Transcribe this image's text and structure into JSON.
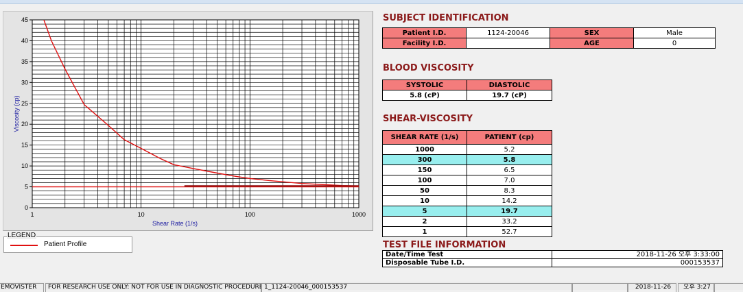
{
  "legend": {
    "title": "LEGEND",
    "item": "Patient Profile",
    "line_color": "#e01010"
  },
  "chart_data": {
    "type": "line",
    "xlabel": "Shear Rate (1/s)",
    "ylabel": "Viscosity (cp)",
    "xscale": "log",
    "xlim": [
      1,
      1000
    ],
    "ylim": [
      0,
      45
    ],
    "x_ticks": [
      "1",
      "10",
      "100",
      "1000"
    ],
    "y_ticks": [
      "0",
      "5",
      "10",
      "15",
      "20",
      "25",
      "30",
      "35",
      "40",
      "45"
    ],
    "grid": true,
    "series": [
      {
        "name": "Patient Profile",
        "color": "#e01010",
        "x": [
          1,
          1.5,
          2,
          3,
          5,
          7,
          10,
          15,
          20,
          30,
          50,
          70,
          100,
          150,
          200,
          300,
          500,
          700,
          1000
        ],
        "y": [
          52.7,
          40.0,
          33.2,
          24.7,
          19.7,
          16.3,
          14.2,
          11.8,
          10.3,
          9.4,
          8.3,
          7.6,
          7.0,
          6.5,
          6.2,
          5.8,
          5.5,
          5.3,
          5.2
        ]
      },
      {
        "color": "#e01010",
        "x": [
          1,
          1000
        ],
        "y": [
          5,
          5
        ]
      },
      {
        "color": "#8b1010",
        "x": [
          25,
          1000
        ],
        "y": [
          5.2,
          5.2
        ]
      }
    ]
  },
  "subject": {
    "title": "SUBJECT IDENTIFICATION",
    "patient_id_label": "Patient I.D.",
    "patient_id": "1124-20046",
    "sex_label": "SEX",
    "sex": "Male",
    "facility_label": "Facility I.D.",
    "facility": "",
    "age_label": "AGE",
    "age": "0"
  },
  "blood": {
    "title": "BLOOD VISCOSITY",
    "systolic_label": "SYSTOLIC",
    "systolic": "5.8 (cP)",
    "diastolic_label": "DIASTOLIC",
    "diastolic": "19.7 (cP)"
  },
  "shear": {
    "title": "SHEAR-VISCOSITY",
    "col1": "SHEAR RATE (1/s)",
    "col2": "PATIENT (cp)",
    "rows": [
      {
        "rate": "1000",
        "val": "5.2"
      },
      {
        "rate": "300",
        "val": "5.8"
      },
      {
        "rate": "150",
        "val": "6.5"
      },
      {
        "rate": "100",
        "val": "7.0"
      },
      {
        "rate": "50",
        "val": "8.3"
      },
      {
        "rate": "10",
        "val": "14.2"
      },
      {
        "rate": "5",
        "val": "19.7"
      },
      {
        "rate": "2",
        "val": "33.2"
      },
      {
        "rate": "1",
        "val": "52.7"
      }
    ],
    "highlight_color": "#98eeee"
  },
  "testfile": {
    "title": "TEST FILE INFORMATION",
    "datetime_label": "Date/Time Test",
    "datetime": "2018-11-26  오후 3:33:00",
    "tube_label": "Disposable Tube I.D.",
    "tube": "000153537"
  },
  "status": {
    "app": "EMOVISTER",
    "notice": "FOR RESEARCH USE ONLY: NOT FOR USE IN DIAGNOSTIC PROCEDURES",
    "file": "1_1124-20046_000153537",
    "date": "2018-11-26",
    "time": "오후 3:27"
  }
}
